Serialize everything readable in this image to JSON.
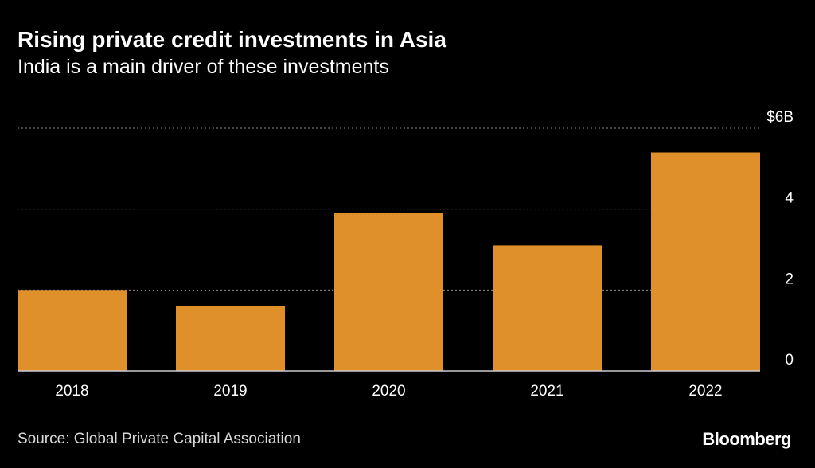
{
  "header": {
    "title": "Rising private credit investments in Asia",
    "subtitle": "India is a main driver of these investments"
  },
  "footer": {
    "source": "Source: Global Private Capital Association",
    "logo": "Bloomberg"
  },
  "colors": {
    "background": "#000000",
    "bar": "#e0902a",
    "text": "#ffffff",
    "gridline": "#8a8a8a"
  },
  "chart_data": {
    "type": "bar",
    "title": "Rising private credit investments in Asia",
    "subtitle": "India is a main driver of these investments",
    "categories": [
      "2018",
      "2019",
      "2020",
      "2021",
      "2022"
    ],
    "values": [
      2.0,
      1.6,
      3.9,
      3.1,
      5.4
    ],
    "ylim": [
      0,
      6
    ],
    "yticks": [
      0,
      2,
      4,
      6
    ],
    "ytick_labels": [
      "0",
      "2",
      "4",
      "$6B"
    ],
    "ylabel": "",
    "xlabel": "",
    "grid": true,
    "y_axis_position": "right"
  }
}
